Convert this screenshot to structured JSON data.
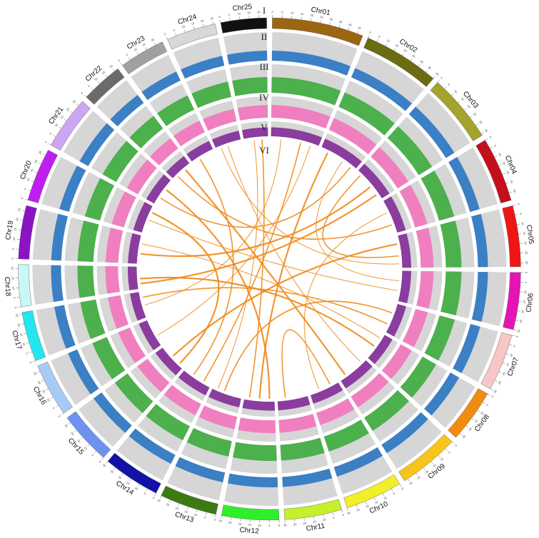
{
  "chart_data": {
    "type": "circos",
    "chromosomes": [
      {
        "name": "Chr01",
        "color": "#9c6512",
        "length": 48,
        "ticks": [
          0,
          5,
          10,
          15,
          20,
          25,
          30,
          35,
          40,
          45
        ]
      },
      {
        "name": "Chr02",
        "color": "#6b6b12",
        "length": 40,
        "ticks": [
          0,
          5,
          10,
          15,
          20,
          25,
          30,
          35,
          40
        ]
      },
      {
        "name": "Chr03",
        "color": "#a3a32e",
        "length": 36,
        "ticks": [
          0,
          5,
          10,
          15,
          20,
          25,
          30,
          35
        ]
      },
      {
        "name": "Chr04",
        "color": "#c4101c",
        "length": 34,
        "ticks": [
          0,
          5,
          10,
          15,
          20,
          25,
          30
        ]
      },
      {
        "name": "Chr05",
        "color": "#f01515",
        "length": 32,
        "ticks": [
          0,
          5,
          10,
          15,
          20,
          25,
          30
        ]
      },
      {
        "name": "Chr06",
        "color": "#e614b4",
        "length": 30,
        "ticks": [
          0,
          5,
          10,
          15,
          20,
          25,
          30
        ]
      },
      {
        "name": "Chr07",
        "color": "#f7c6c6",
        "length": 30,
        "ticks": [
          0,
          5,
          10,
          15,
          20,
          25,
          30
        ]
      },
      {
        "name": "Chr08",
        "color": "#f08c10",
        "length": 28,
        "ticks": [
          0,
          5,
          10,
          15,
          20,
          25
        ]
      },
      {
        "name": "Chr09",
        "color": "#f7c41a",
        "length": 32,
        "ticks": [
          0,
          5,
          10,
          15,
          20,
          25,
          30
        ]
      },
      {
        "name": "Chr10",
        "color": "#f2ee2a",
        "length": 30,
        "ticks": [
          0,
          5,
          10,
          15,
          20,
          25,
          30
        ]
      },
      {
        "name": "Chr11",
        "color": "#c6f02a",
        "length": 30,
        "ticks": [
          0,
          5,
          10,
          15,
          20,
          25,
          30
        ]
      },
      {
        "name": "Chr12",
        "color": "#2ef02a",
        "length": 30,
        "ticks": [
          0,
          5,
          10,
          15,
          20,
          25,
          30
        ]
      },
      {
        "name": "Chr13",
        "color": "#3c7a12",
        "length": 30,
        "ticks": [
          0,
          5,
          10,
          15,
          20,
          25,
          30
        ]
      },
      {
        "name": "Chr14",
        "color": "#1212a6",
        "length": 30,
        "ticks": [
          0,
          5,
          10,
          15,
          20,
          25,
          30
        ]
      },
      {
        "name": "Chr15",
        "color": "#6f92f0",
        "length": 28,
        "ticks": [
          0,
          5,
          10,
          15,
          20,
          25
        ]
      },
      {
        "name": "Chr16",
        "color": "#a6cbf5",
        "length": 28,
        "ticks": [
          0,
          5,
          10,
          15,
          20,
          25
        ]
      },
      {
        "name": "Chr17",
        "color": "#24e6ee",
        "length": 26,
        "ticks": [
          0,
          5,
          10,
          15,
          20,
          25
        ]
      },
      {
        "name": "Chr18",
        "color": "#c8f7f7",
        "length": 22,
        "ticks": [
          0,
          5,
          10,
          15,
          20
        ]
      },
      {
        "name": "Chr19",
        "color": "#8a14c4",
        "length": 28,
        "ticks": [
          0,
          5,
          10,
          15,
          20,
          25
        ]
      },
      {
        "name": "Chr20",
        "color": "#c01ef0",
        "length": 28,
        "ticks": [
          0,
          5,
          10,
          15,
          20,
          25
        ]
      },
      {
        "name": "Chr21",
        "color": "#cca6f2",
        "length": 28,
        "ticks": [
          0,
          5,
          10,
          15,
          20,
          25
        ]
      },
      {
        "name": "Chr22",
        "color": "#6b6b6b",
        "length": 22,
        "ticks": [
          0,
          5,
          10,
          15,
          20
        ]
      },
      {
        "name": "Chr23",
        "color": "#a0a0a0",
        "length": 24,
        "ticks": [
          0,
          5,
          10,
          15,
          20
        ]
      },
      {
        "name": "Chr24",
        "color": "#d8d8d8",
        "length": 26,
        "ticks": [
          0,
          5,
          10,
          15,
          20,
          25
        ]
      },
      {
        "name": "Chr25",
        "color": "#111111",
        "length": 24,
        "ticks": [
          0,
          5,
          10,
          15,
          20
        ]
      }
    ],
    "track_labels": [
      "I",
      "II",
      "III",
      "IV",
      "V",
      "VI"
    ],
    "tracks": [
      {
        "label": "II",
        "color": "#3b7fc4"
      },
      {
        "label": "III",
        "color": "#4cb04c"
      },
      {
        "label": "IV",
        "color": "#f07fbf"
      },
      {
        "label": "V",
        "color": "#8a3d9e"
      }
    ],
    "link_color": "#f08a1a",
    "links": [
      {
        "from": [
          0,
          10
        ],
        "to": [
          16,
          12
        ]
      },
      {
        "from": [
          0,
          30
        ],
        "to": [
          13,
          8
        ]
      },
      {
        "from": [
          1,
          8
        ],
        "to": [
          11,
          15
        ]
      },
      {
        "from": [
          1,
          25
        ],
        "to": [
          5,
          10
        ]
      },
      {
        "from": [
          2,
          5
        ],
        "to": [
          4,
          20
        ]
      },
      {
        "from": [
          2,
          20
        ],
        "to": [
          18,
          10
        ]
      },
      {
        "from": [
          3,
          12
        ],
        "to": [
          9,
          20
        ]
      },
      {
        "from": [
          3,
          25
        ],
        "to": [
          21,
          5
        ]
      },
      {
        "from": [
          4,
          8
        ],
        "to": [
          14,
          15
        ]
      },
      {
        "from": [
          5,
          20
        ],
        "to": [
          19,
          14
        ]
      },
      {
        "from": [
          6,
          10
        ],
        "to": [
          12,
          18
        ]
      },
      {
        "from": [
          7,
          15
        ],
        "to": [
          17,
          10
        ]
      },
      {
        "from": [
          8,
          5
        ],
        "to": [
          23,
          12
        ]
      },
      {
        "from": [
          9,
          8
        ],
        "to": [
          10,
          22
        ]
      },
      {
        "from": [
          11,
          5
        ],
        "to": [
          20,
          18
        ]
      },
      {
        "from": [
          12,
          25
        ],
        "to": [
          24,
          10
        ]
      },
      {
        "from": [
          13,
          20
        ],
        "to": [
          22,
          8
        ]
      },
      {
        "from": [
          14,
          5
        ],
        "to": [
          19,
          22
        ]
      },
      {
        "from": [
          15,
          10
        ],
        "to": [
          0,
          40
        ]
      },
      {
        "from": [
          16,
          20
        ],
        "to": [
          6,
          22
        ]
      },
      {
        "from": [
          17,
          5
        ],
        "to": [
          2,
          30
        ]
      },
      {
        "from": [
          18,
          20
        ],
        "to": [
          7,
          5
        ]
      },
      {
        "from": [
          20,
          8
        ],
        "to": [
          1,
          35
        ]
      },
      {
        "from": [
          21,
          15
        ],
        "to": [
          8,
          25
        ]
      },
      {
        "from": [
          23,
          5
        ],
        "to": [
          4,
          28
        ]
      },
      {
        "from": [
          24,
          18
        ],
        "to": [
          11,
          25
        ]
      }
    ]
  }
}
